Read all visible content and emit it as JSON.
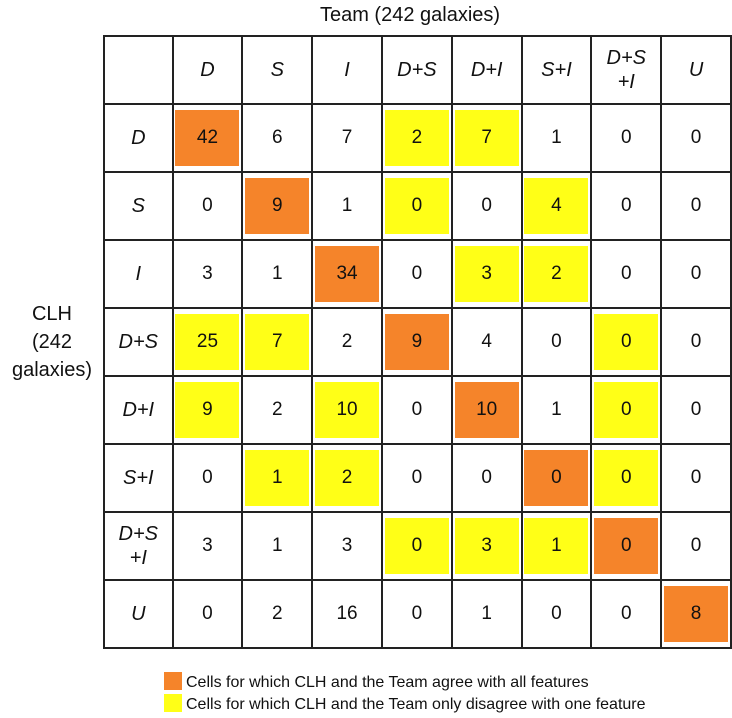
{
  "chart_data": {
    "type": "table",
    "title": "Team (242 galaxies)",
    "row_axis_label": [
      "CLH",
      "(242",
      "galaxies)"
    ],
    "columns": [
      "D",
      "S",
      "I",
      "D+S",
      "D+I",
      "S+I",
      "D+S +I",
      "U"
    ],
    "rows": [
      "D",
      "S",
      "I",
      "D+S",
      "D+I",
      "S+I",
      "D+S +I",
      "U"
    ],
    "values": [
      [
        42,
        6,
        7,
        2,
        7,
        1,
        0,
        0
      ],
      [
        0,
        9,
        1,
        0,
        0,
        4,
        0,
        0
      ],
      [
        3,
        1,
        34,
        0,
        3,
        2,
        0,
        0
      ],
      [
        25,
        7,
        2,
        9,
        4,
        0,
        0,
        0
      ],
      [
        9,
        2,
        10,
        0,
        10,
        1,
        0,
        0
      ],
      [
        0,
        1,
        2,
        0,
        0,
        0,
        0,
        0
      ],
      [
        3,
        1,
        3,
        0,
        3,
        1,
        0,
        0
      ],
      [
        0,
        2,
        16,
        0,
        1,
        0,
        0,
        8
      ]
    ],
    "highlight": [
      [
        "agree",
        "",
        "",
        "disagree-one",
        "disagree-one",
        "",
        "",
        ""
      ],
      [
        "",
        "agree",
        "",
        "disagree-one",
        "",
        "disagree-one",
        "",
        ""
      ],
      [
        "",
        "",
        "agree",
        "",
        "disagree-one",
        "disagree-one",
        "",
        ""
      ],
      [
        "disagree-one",
        "disagree-one",
        "",
        "agree",
        "",
        "",
        "disagree-one",
        ""
      ],
      [
        "disagree-one",
        "",
        "disagree-one",
        "",
        "agree",
        "",
        "disagree-one",
        ""
      ],
      [
        "",
        "disagree-one",
        "disagree-one",
        "",
        "",
        "agree",
        "disagree-one",
        ""
      ],
      [
        "",
        "",
        "",
        "disagree-one",
        "disagree-one",
        "disagree-one",
        "agree",
        ""
      ],
      [
        "",
        "",
        "",
        "",
        "",
        "",
        "",
        "agree"
      ]
    ],
    "colors": {
      "agree": "#f5842a",
      "disagree-one": "#ffff17"
    },
    "legend": [
      {
        "key": "agree",
        "label": "Cells for which CLH and the Team agree with all features"
      },
      {
        "key": "disagree-one",
        "label": "Cells for which CLH and the Team only disagree with one feature"
      }
    ]
  }
}
